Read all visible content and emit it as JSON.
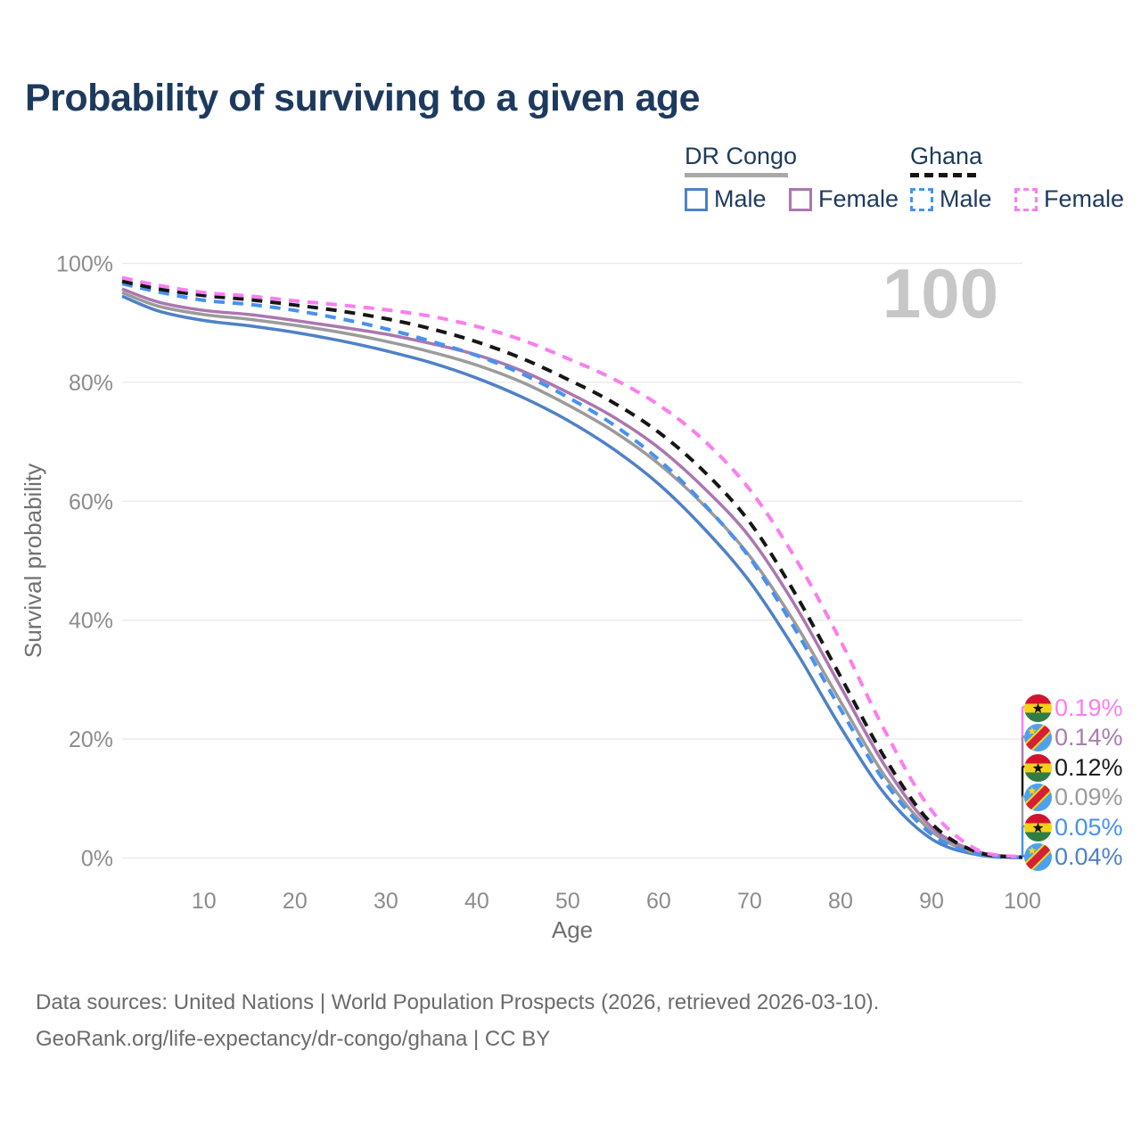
{
  "title": "Probability of surviving to a given age",
  "watermark": "100",
  "colors": {
    "drc_male": "#4f81c7",
    "drc_female": "#ab77b0",
    "drc_both": "#9b9b9b",
    "ghana_male": "#4791f0",
    "ghana_female": "#fb7df0",
    "ghana_both": "#161616",
    "title_text": "#1d3a5e",
    "axis_text": "#8c8c8c",
    "gridline": "#e9e9e9"
  },
  "legend": {
    "groups": [
      {
        "label": "DR Congo",
        "line_style": "solid",
        "items": [
          {
            "label": "Male"
          },
          {
            "label": "Female"
          }
        ]
      },
      {
        "label": "Ghana",
        "line_style": "dashed",
        "items": [
          {
            "label": "Male"
          },
          {
            "label": "Female"
          }
        ]
      }
    ]
  },
  "chart_data": {
    "type": "line",
    "title": "Probability of surviving to a given age",
    "xlabel": "Age",
    "ylabel": "Survival probability",
    "x_ticks": [
      10,
      20,
      30,
      40,
      50,
      60,
      70,
      80,
      90,
      100
    ],
    "y_ticks": [
      "0%",
      "20%",
      "40%",
      "60%",
      "80%",
      "100%"
    ],
    "xlim": [
      1,
      100
    ],
    "ylim": [
      0,
      100
    ],
    "grid": "horizontal",
    "ages": [
      1,
      5,
      10,
      15,
      20,
      25,
      30,
      35,
      40,
      45,
      50,
      55,
      60,
      65,
      70,
      75,
      80,
      85,
      90,
      95,
      100
    ],
    "series": [
      {
        "name": "DR Congo Male",
        "country": "DR Congo",
        "sex": "Male",
        "color": "drc_male",
        "dash": false,
        "values": [
          94.5,
          92.0,
          90.4,
          89.5,
          88.4,
          87.0,
          85.3,
          83.3,
          80.7,
          77.5,
          73.6,
          68.8,
          62.9,
          55.4,
          46.5,
          35.0,
          22.0,
          10.5,
          3.2,
          0.55,
          0.04
        ]
      },
      {
        "name": "DR Congo",
        "country": "DR Congo",
        "sex": "Both",
        "color": "drc_both",
        "dash": false,
        "values": [
          95.1,
          92.8,
          91.4,
          90.6,
          89.6,
          88.4,
          86.9,
          85.1,
          82.9,
          80.0,
          76.2,
          71.8,
          66.3,
          59.3,
          50.8,
          39.5,
          26.3,
          13.5,
          4.5,
          0.75,
          0.09
        ]
      },
      {
        "name": "DR Congo Female",
        "country": "DR Congo",
        "sex": "Female",
        "color": "drc_female",
        "dash": false,
        "values": [
          95.7,
          93.5,
          92.1,
          91.4,
          90.4,
          89.3,
          88.1,
          86.5,
          84.6,
          81.9,
          78.3,
          74.2,
          69.0,
          62.2,
          54.0,
          42.5,
          28.8,
          15.2,
          5.2,
          1.1,
          0.14
        ]
      },
      {
        "name": "Ghana Male",
        "country": "Ghana",
        "sex": "Male",
        "color": "ghana_male",
        "dash": true,
        "values": [
          96.6,
          95.2,
          93.8,
          93.1,
          92.1,
          90.7,
          89.0,
          86.9,
          84.5,
          81.4,
          77.5,
          72.9,
          67.0,
          59.5,
          50.5,
          38.5,
          25.0,
          12.5,
          4.0,
          0.65,
          0.05
        ]
      },
      {
        "name": "Ghana",
        "country": "Ghana",
        "sex": "Both",
        "color": "ghana_both",
        "dash": true,
        "values": [
          97.0,
          95.7,
          94.6,
          93.9,
          93.0,
          92.0,
          90.7,
          89.0,
          86.8,
          84.0,
          80.5,
          76.6,
          71.6,
          65.0,
          56.5,
          44.5,
          30.5,
          16.5,
          5.8,
          1.0,
          0.12
        ]
      },
      {
        "name": "Ghana Female",
        "country": "Ghana",
        "sex": "Female",
        "color": "ghana_female",
        "dash": true,
        "values": [
          97.6,
          96.3,
          95.1,
          94.5,
          93.7,
          93.0,
          92.2,
          91.1,
          89.4,
          87.1,
          84.0,
          80.6,
          76.2,
          70.2,
          62.0,
          50.5,
          36.5,
          21.0,
          8.0,
          1.4,
          0.19
        ]
      }
    ]
  },
  "end_labels": [
    {
      "flag": "ghana",
      "series": "Ghana Female",
      "value": "0.19%",
      "color": "#fb7df0"
    },
    {
      "flag": "drc",
      "series": "DR Congo Female",
      "value": "0.14%",
      "color": "#a87cae"
    },
    {
      "flag": "ghana",
      "series": "Ghana",
      "value": "0.12%",
      "color": "#1a1a1a"
    },
    {
      "flag": "drc",
      "series": "DR Congo",
      "value": "0.09%",
      "color": "#9b9b9b"
    },
    {
      "flag": "ghana",
      "series": "Ghana Male",
      "value": "0.05%",
      "color": "#4791f0"
    },
    {
      "flag": "drc",
      "series": "DR Congo Male",
      "value": "0.04%",
      "color": "#4f81c7"
    }
  ],
  "source_lines": [
    "Data sources: United Nations | World Population Prospects (2026, retrieved 2026-03-10).",
    "GeoRank.org/life-expectancy/dr-congo/ghana | CC BY"
  ]
}
